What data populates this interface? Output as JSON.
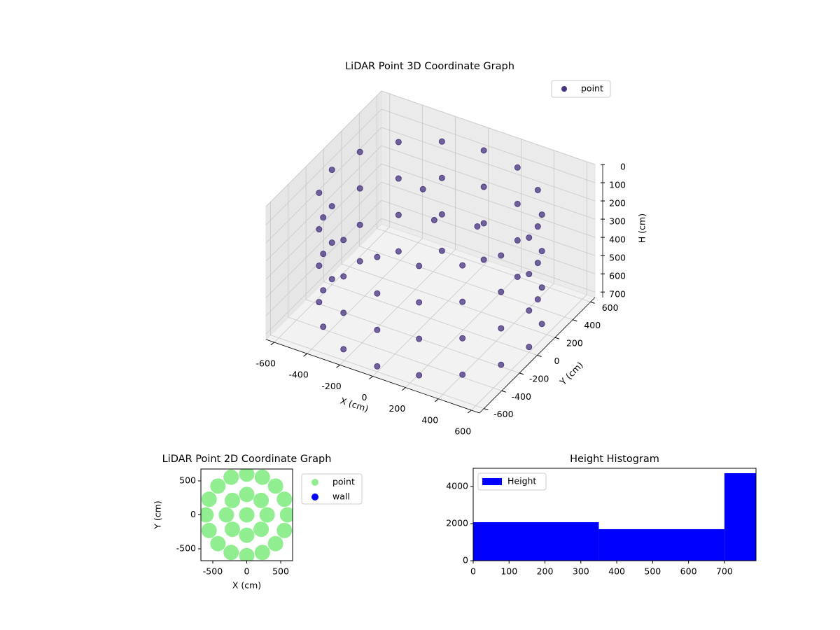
{
  "chart_data": [
    {
      "type": "scatter3d",
      "title": "LiDAR Point 3D Coordinate Graph",
      "x_label": "X (cm)",
      "y_label": "Y (cm)",
      "z_label": "H (cm)",
      "xlim": [
        -650,
        650
      ],
      "ylim": [
        -650,
        650
      ],
      "zlim": [
        0,
        730
      ],
      "z_inverted": true,
      "xticks": [
        -600,
        -400,
        -200,
        0,
        200,
        400,
        600
      ],
      "yticks": [
        -600,
        -400,
        -200,
        0,
        200,
        400,
        600
      ],
      "zticks": [
        0,
        100,
        200,
        300,
        400,
        500,
        600,
        700
      ],
      "grid": true,
      "legend": "upper right",
      "series": [
        {
          "name": "point",
          "color": "#46327e",
          "x": [
            600,
            554,
            424,
            230,
            0,
            -230,
            -424,
            -554,
            -600,
            -554,
            -424,
            -230,
            0,
            230,
            424,
            554,
            600,
            554,
            424,
            230,
            0,
            -230,
            -424,
            -554,
            -600,
            -554,
            -424,
            -230,
            0,
            230,
            424,
            554,
            600,
            554,
            424,
            230,
            0,
            -230,
            -424,
            -554,
            -600,
            -554,
            -424,
            -230,
            0,
            230,
            424,
            554,
            600,
            554,
            424,
            230,
            0,
            -230,
            -424,
            -554,
            -600,
            -554,
            -424,
            -230,
            0,
            230,
            424,
            554,
            -100,
            50,
            150
          ],
          "y": [
            0,
            230,
            424,
            554,
            600,
            554,
            424,
            230,
            0,
            -230,
            -424,
            -554,
            -600,
            -554,
            -424,
            -230,
            0,
            230,
            424,
            554,
            600,
            554,
            424,
            230,
            0,
            -230,
            -424,
            -554,
            -600,
            -554,
            -424,
            -230,
            0,
            230,
            424,
            554,
            600,
            554,
            424,
            230,
            0,
            -230,
            -424,
            -554,
            -600,
            -554,
            -424,
            -230,
            0,
            230,
            424,
            554,
            600,
            554,
            424,
            230,
            0,
            -230,
            -424,
            -554,
            -600,
            -554,
            -424,
            -230,
            100,
            -50,
            250
          ],
          "z": [
            100,
            100,
            100,
            100,
            100,
            100,
            100,
            100,
            100,
            100,
            100,
            100,
            100,
            100,
            100,
            100,
            300,
            300,
            300,
            300,
            300,
            300,
            300,
            300,
            300,
            300,
            300,
            300,
            300,
            300,
            300,
            300,
            500,
            500,
            500,
            500,
            500,
            500,
            500,
            500,
            500,
            500,
            500,
            500,
            500,
            500,
            500,
            500,
            700,
            700,
            700,
            700,
            700,
            700,
            700,
            700,
            700,
            700,
            700,
            700,
            700,
            700,
            700,
            700,
            100,
            150,
            300
          ]
        }
      ]
    },
    {
      "type": "scatter",
      "title": "LiDAR Point 2D Coordinate Graph",
      "x_label": "X (cm)",
      "y_label": "Y (cm)",
      "xlim": [
        -675,
        675
      ],
      "ylim": [
        -675,
        675
      ],
      "xticks": [
        -500,
        0,
        500
      ],
      "yticks": [
        -500,
        0,
        500
      ],
      "legend": "outside upper right",
      "series": [
        {
          "name": "point",
          "color": "#90ee90",
          "x": [
            600,
            554,
            424,
            230,
            0,
            -230,
            -424,
            -554,
            -600,
            -554,
            -424,
            -230,
            0,
            230,
            424,
            554,
            300,
            212,
            0,
            -212,
            -300,
            -212,
            0,
            212,
            0
          ],
          "y": [
            0,
            230,
            424,
            554,
            600,
            554,
            424,
            230,
            0,
            -230,
            -424,
            -554,
            -600,
            -554,
            -424,
            -230,
            0,
            212,
            300,
            212,
            0,
            -212,
            -300,
            -212,
            0
          ]
        },
        {
          "name": "wall",
          "color": "#0000ff",
          "x": [],
          "y": []
        }
      ]
    },
    {
      "type": "histogram",
      "title": "Height Histogram",
      "bins": [
        0,
        350,
        700,
        788
      ],
      "values": [
        2075,
        1700,
        4717
      ],
      "series_name": "Height",
      "color": "#0000ff",
      "xlim": [
        0,
        788
      ],
      "ylim": [
        0,
        4980
      ],
      "xticks": [
        0,
        100,
        200,
        300,
        400,
        500,
        600,
        700
      ],
      "yticks": [
        0,
        2000,
        4000
      ],
      "legend": "upper left"
    }
  ]
}
